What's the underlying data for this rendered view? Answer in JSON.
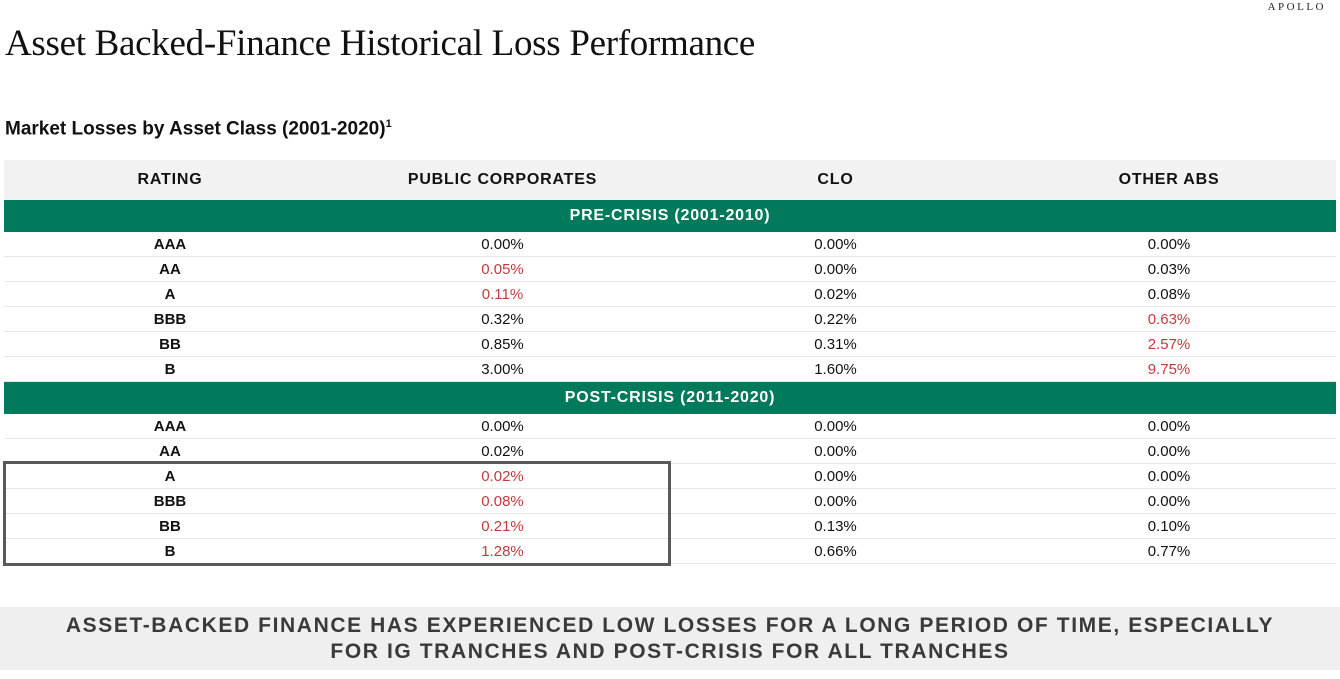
{
  "brand": "APOLLO",
  "title": "Asset Backed-Finance Historical Loss Performance",
  "subtitle": {
    "text": "Market Losses by Asset Class (2001-2020)",
    "footnote": "1"
  },
  "table": {
    "headers": [
      "RATING",
      "PUBLIC CORPORATES",
      "CLO",
      "OTHER ABS"
    ],
    "sections": [
      {
        "label": "PRE-CRISIS (2001-2010)",
        "rows": [
          {
            "rating": "AAA",
            "public": "0.00%",
            "public_red": false,
            "clo": "0.00%",
            "clo_red": false,
            "abs": "0.00%",
            "abs_red": false
          },
          {
            "rating": "AA",
            "public": "0.05%",
            "public_red": true,
            "clo": "0.00%",
            "clo_red": false,
            "abs": "0.03%",
            "abs_red": false
          },
          {
            "rating": "A",
            "public": "0.11%",
            "public_red": true,
            "clo": "0.02%",
            "clo_red": false,
            "abs": "0.08%",
            "abs_red": false
          },
          {
            "rating": "BBB",
            "public": "0.32%",
            "public_red": false,
            "clo": "0.22%",
            "clo_red": false,
            "abs": "0.63%",
            "abs_red": true
          },
          {
            "rating": "BB",
            "public": "0.85%",
            "public_red": false,
            "clo": "0.31%",
            "clo_red": false,
            "abs": "2.57%",
            "abs_red": true
          },
          {
            "rating": "B",
            "public": "3.00%",
            "public_red": false,
            "clo": "1.60%",
            "clo_red": false,
            "abs": "9.75%",
            "abs_red": true
          }
        ]
      },
      {
        "label": "POST-CRISIS (2011-2020)",
        "rows": [
          {
            "rating": "AAA",
            "public": "0.00%",
            "public_red": false,
            "clo": "0.00%",
            "clo_red": false,
            "abs": "0.00%",
            "abs_red": false
          },
          {
            "rating": "AA",
            "public": "0.02%",
            "public_red": false,
            "clo": "0.00%",
            "clo_red": false,
            "abs": "0.00%",
            "abs_red": false
          },
          {
            "rating": "A",
            "public": "0.02%",
            "public_red": true,
            "clo": "0.00%",
            "clo_red": false,
            "abs": "0.00%",
            "abs_red": false
          },
          {
            "rating": "BBB",
            "public": "0.08%",
            "public_red": true,
            "clo": "0.00%",
            "clo_red": false,
            "abs": "0.00%",
            "abs_red": false
          },
          {
            "rating": "BB",
            "public": "0.21%",
            "public_red": true,
            "clo": "0.13%",
            "clo_red": false,
            "abs": "0.10%",
            "abs_red": false
          },
          {
            "rating": "B",
            "public": "1.28%",
            "public_red": true,
            "clo": "0.66%",
            "clo_red": false,
            "abs": "0.77%",
            "abs_red": false
          }
        ]
      }
    ]
  },
  "callout": "ASSET-BACKED FINANCE HAS EXPERIENCED LOW LOSSES FOR A LONG PERIOD OF TIME, ESPECIALLY FOR IG TRANCHES AND POST-CRISIS FOR ALL TRANCHES",
  "colors": {
    "band": "#007a5a",
    "highlight_text": "#c23b3b",
    "header_bg": "#f2f2f2",
    "callout_bg": "#efefef"
  }
}
